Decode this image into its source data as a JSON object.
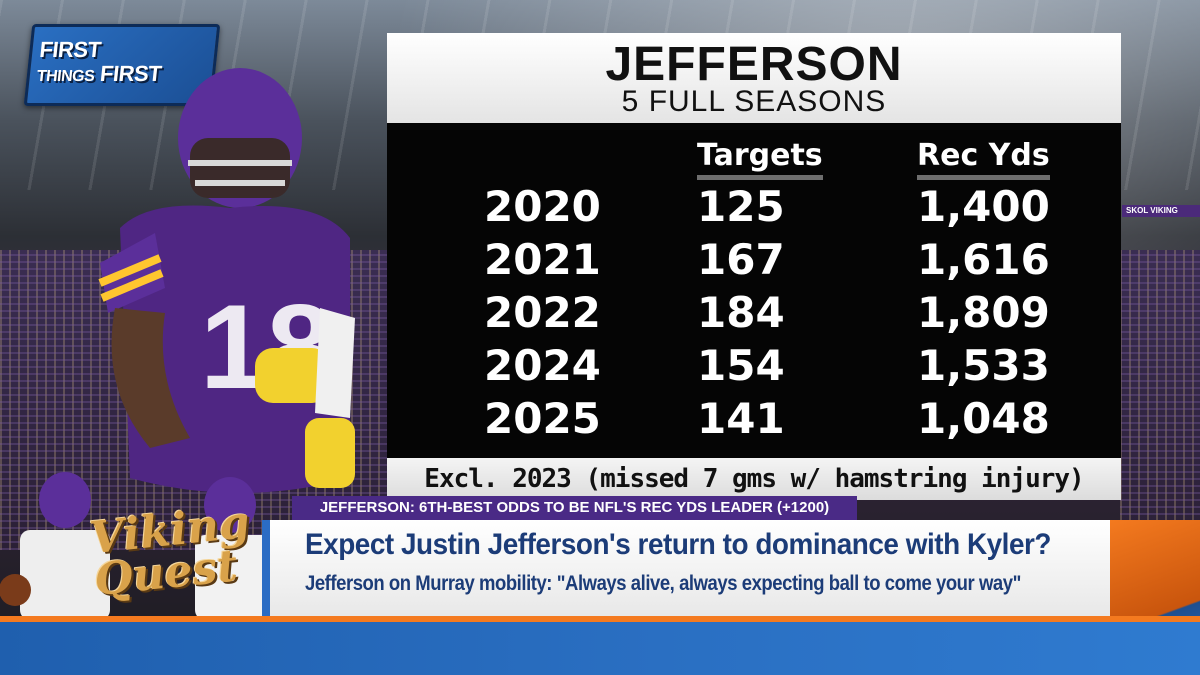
{
  "show": {
    "logo_line1": "FIRST",
    "logo_line2": "THINGS",
    "logo_line3": "FIRST"
  },
  "board": {
    "title": "JEFFERSON",
    "subtitle": "5 FULL SEASONS",
    "columns": [
      "Targets",
      "Rec Yds"
    ],
    "rows": [
      {
        "year": "2020",
        "targets": "125",
        "rec_yds": "1,400"
      },
      {
        "year": "2021",
        "targets": "167",
        "rec_yds": "1,616"
      },
      {
        "year": "2022",
        "targets": "184",
        "rec_yds": "1,809"
      },
      {
        "year": "2024",
        "targets": "154",
        "rec_yds": "1,533"
      },
      {
        "year": "2025",
        "targets": "141",
        "rec_yds": "1,048"
      }
    ],
    "footnote": "Excl. 2023 (missed 7 gms w/ hamstring injury)"
  },
  "ticker": "JEFFERSON: 6TH-BEST ODDS TO BE NFL'S REC YDS LEADER (+1200)",
  "lower_third": {
    "headline": "Expect Justin Jefferson's return to dominance with Kyler?",
    "subline": "Jefferson on Murray mobility: \"Always alive, always expecting ball to come your way\""
  },
  "segment": {
    "line1": "Viking",
    "line2": "Quest"
  },
  "stadium_ribbon": "SKOL VIKING",
  "colors": {
    "vikings_purple": "#4f2683",
    "vikings_gold": "#ffc62f",
    "fox_blue": "#2a6fc2",
    "fox_orange": "#f47a1f"
  }
}
